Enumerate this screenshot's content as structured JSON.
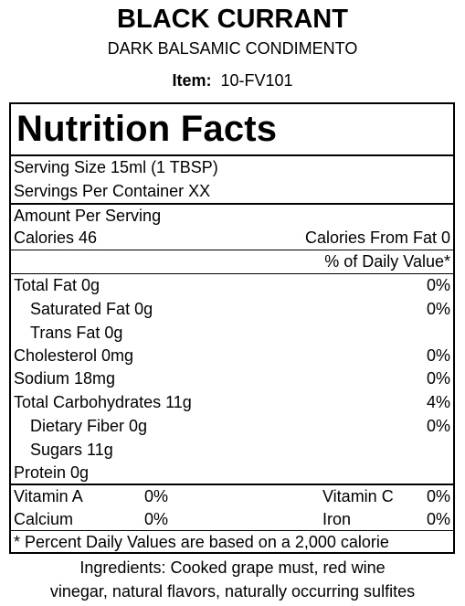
{
  "header": {
    "product_name": "BLACK CURRANT",
    "product_type": "DARK BALSAMIC CONDIMENTO",
    "item_label": "Item:",
    "item_number": "10-FV101"
  },
  "nutrition": {
    "title": "Nutrition Facts",
    "serving_size": "Serving Size  15ml (1 TBSP)",
    "servings_per_container": "Servings Per Container  XX",
    "amount_per_serving": "Amount Per Serving",
    "calories": "Calories 46",
    "calories_from_fat": "Calories From Fat 0",
    "daily_value_header": "% of Daily Value*",
    "nutrients": [
      {
        "label": "Total Fat  0g",
        "dv": "0%"
      },
      {
        "label": "Saturated Fat  0g",
        "dv": "0%"
      },
      {
        "label": "Trans Fat  0g",
        "dv": ""
      },
      {
        "label": "Cholesterol  0mg",
        "dv": "0%"
      },
      {
        "label": "Sodium  18mg",
        "dv": "0%"
      },
      {
        "label": "Total Carbohydrates  11g",
        "dv": "4%"
      },
      {
        "label": "Dietary Fiber  0g",
        "dv": "0%"
      },
      {
        "label": "Sugars  11g",
        "dv": ""
      },
      {
        "label": "Protein  0g",
        "dv": ""
      }
    ],
    "vitamins": {
      "vitamin_a_label": "Vitamin A",
      "vitamin_a_value": "0%",
      "vitamin_c_label": "Vitamin C",
      "vitamin_c_value": "0%",
      "calcium_label": "Calcium",
      "calcium_value": "0%",
      "iron_label": "Iron",
      "iron_value": "0%"
    },
    "footnote": "* Percent Daily Values are based on a 2,000 calorie"
  },
  "ingredients": {
    "line1": "Ingredients:  Cooked grape must, red wine",
    "line2": "vinegar, natural flavors, naturally occurring sulfites"
  }
}
